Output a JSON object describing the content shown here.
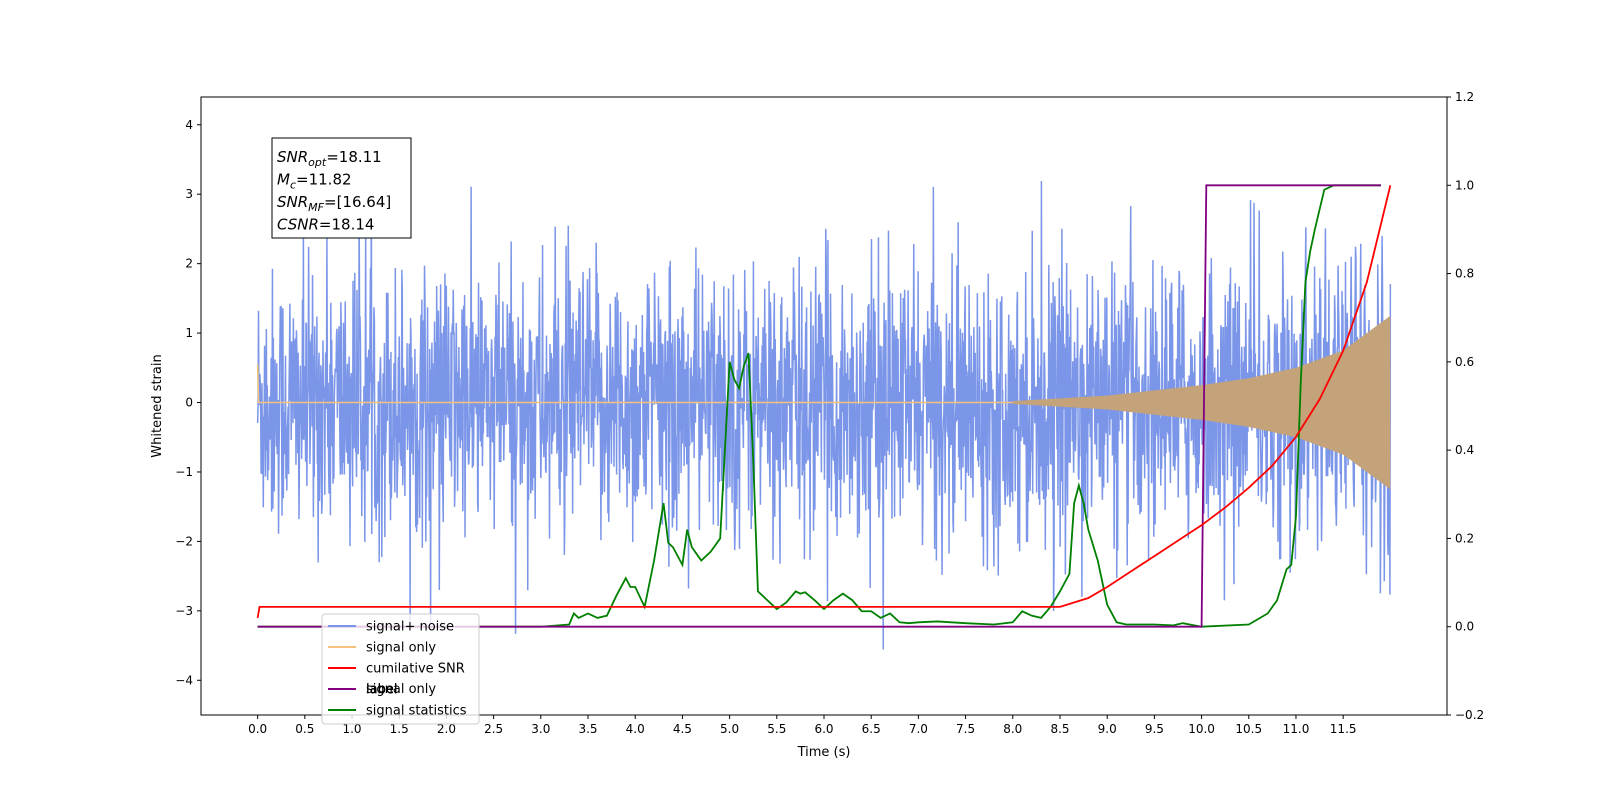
{
  "chart_data": {
    "type": "line",
    "xlabel": "Time (s)",
    "ylabel": "Whitened strain",
    "xlim": [
      -0.6,
      12.6
    ],
    "ylim": [
      -4.5,
      4.4
    ],
    "y2lim": [
      -0.2,
      1.2
    ],
    "xticks": [
      "0.0",
      "0.5",
      "1.0",
      "1.5",
      "2.0",
      "2.5",
      "3.0",
      "3.5",
      "4.0",
      "4.5",
      "5.0",
      "5.5",
      "6.0",
      "6.5",
      "7.0",
      "7.5",
      "8.0",
      "8.5",
      "9.0",
      "9.5",
      "10.0",
      "10.5",
      "11.0",
      "11.5"
    ],
    "yticks": [
      "−4",
      "−3",
      "−2",
      "−1",
      "0",
      "1",
      "2",
      "3",
      "4"
    ],
    "y2ticks": [
      "−0.2",
      "0.0",
      "0.2",
      "0.4",
      "0.6",
      "0.8",
      "1.0",
      "1.2"
    ],
    "annotation": {
      "lines": [
        {
          "label": "SNR",
          "sub": "opt",
          "value": "=18.11"
        },
        {
          "label": "M",
          "sub": "c",
          "value": "=11.82"
        },
        {
          "label": "SNR",
          "sub": "MF",
          "value": "=[16.64]"
        },
        {
          "label": "CSNR",
          "sub": "",
          "value": "=18.14"
        }
      ]
    },
    "legend": {
      "placement": "lower-left",
      "entries": [
        "signal+ noise",
        "signal only",
        "cumilative SNR",
        "label",
        "signal statistics"
      ],
      "overlapped_text": "signal only"
    },
    "series": [
      {
        "name": "signal+ noise",
        "axis": "left",
        "color": "#7b96e8",
        "description": "noise samples spanning approximately -2.5 to 2.5 with spikes reaching about ±4 over 0 to 12 s"
      },
      {
        "name": "signal only",
        "axis": "left",
        "color": "#f4c27a",
        "envelope": {
          "x": [
            0.0,
            8.0,
            9.0,
            10.0,
            10.5,
            11.0,
            11.5,
            12.0
          ],
          "amp": [
            0.0,
            0.02,
            0.1,
            0.25,
            0.35,
            0.5,
            0.75,
            1.25
          ]
        }
      },
      {
        "name": "cumilative SNR",
        "axis": "right",
        "color": "#ff0000",
        "x": [
          0.0,
          0.02,
          8.5,
          8.8,
          9.0,
          9.25,
          9.5,
          9.75,
          10.0,
          10.25,
          10.5,
          10.75,
          11.0,
          11.25,
          11.5,
          11.75,
          12.0
        ],
        "values": [
          0.02,
          0.045,
          0.045,
          0.065,
          0.09,
          0.125,
          0.16,
          0.195,
          0.23,
          0.27,
          0.315,
          0.365,
          0.43,
          0.515,
          0.625,
          0.78,
          1.0
        ]
      },
      {
        "name": "label",
        "axis": "right",
        "color": "#800080",
        "x": [
          0.0,
          10.0,
          10.05,
          11.9
        ],
        "values": [
          0.0,
          0.0,
          1.0,
          1.0
        ]
      },
      {
        "name": "signal statistics",
        "axis": "right",
        "color": "#008000",
        "x": [
          0.0,
          3.0,
          3.3,
          3.35,
          3.4,
          3.5,
          3.6,
          3.7,
          3.8,
          3.9,
          3.95,
          4.0,
          4.1,
          4.2,
          4.3,
          4.35,
          4.4,
          4.5,
          4.55,
          4.6,
          4.7,
          4.8,
          4.9,
          5.0,
          5.05,
          5.1,
          5.15,
          5.2,
          5.25,
          5.3,
          5.4,
          5.5,
          5.6,
          5.7,
          5.75,
          5.8,
          5.9,
          6.0,
          6.1,
          6.2,
          6.3,
          6.4,
          6.5,
          6.6,
          6.7,
          6.8,
          6.9,
          7.0,
          7.2,
          7.5,
          7.8,
          8.0,
          8.1,
          8.2,
          8.3,
          8.4,
          8.5,
          8.6,
          8.65,
          8.7,
          8.75,
          8.8,
          8.9,
          9.0,
          9.1,
          9.2,
          9.5,
          9.7,
          9.8,
          10.0,
          10.5,
          10.7,
          10.8,
          10.9,
          10.95,
          11.0,
          11.05,
          11.1,
          11.15,
          11.2,
          11.3,
          11.4,
          11.9
        ],
        "values": [
          0.0,
          0.0,
          0.005,
          0.03,
          0.02,
          0.03,
          0.02,
          0.025,
          0.07,
          0.11,
          0.09,
          0.09,
          0.045,
          0.15,
          0.28,
          0.19,
          0.18,
          0.14,
          0.22,
          0.18,
          0.15,
          0.17,
          0.2,
          0.6,
          0.56,
          0.54,
          0.59,
          0.62,
          0.38,
          0.08,
          0.06,
          0.04,
          0.055,
          0.08,
          0.075,
          0.078,
          0.06,
          0.04,
          0.06,
          0.075,
          0.06,
          0.035,
          0.035,
          0.02,
          0.03,
          0.01,
          0.008,
          0.01,
          0.012,
          0.008,
          0.005,
          0.01,
          0.035,
          0.025,
          0.02,
          0.045,
          0.08,
          0.12,
          0.28,
          0.32,
          0.28,
          0.22,
          0.15,
          0.05,
          0.01,
          0.005,
          0.005,
          0.003,
          0.008,
          0.0,
          0.005,
          0.03,
          0.06,
          0.13,
          0.14,
          0.25,
          0.55,
          0.78,
          0.85,
          0.9,
          0.99,
          1.0,
          1.0
        ]
      }
    ]
  }
}
